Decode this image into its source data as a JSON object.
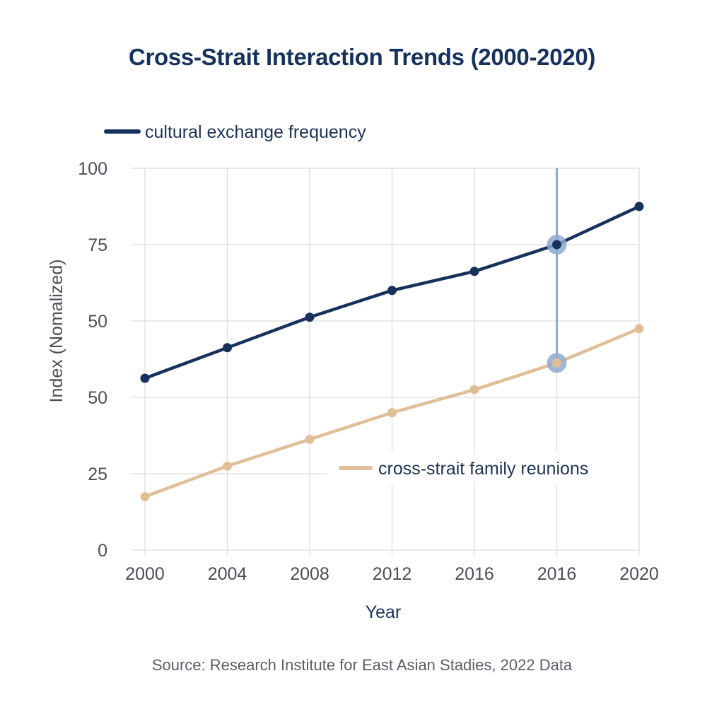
{
  "chart_data": {
    "type": "line",
    "title": "Cross-Strait Interaction Trends (2000-2020)",
    "xlabel": "Year",
    "ylabel": "Index (Nomalized)",
    "x_tick_labels": [
      "2000",
      "2004",
      "2008",
      "2012",
      "2016",
      "2016",
      "2020"
    ],
    "y_tick_labels": [
      "100",
      "75",
      "50",
      "50",
      "25",
      "0"
    ],
    "ylim": [
      0,
      100
    ],
    "grid": true,
    "series": [
      {
        "name": "cultural exchange frequency",
        "color": "#16325c",
        "values": [
          45,
          53,
          61,
          68,
          73,
          80,
          90
        ]
      },
      {
        "name": "cross-strait family reunions",
        "color": "#e0bf98",
        "values": [
          14,
          22,
          29,
          36,
          42,
          49,
          58
        ]
      }
    ],
    "highlight": {
      "index": 5,
      "x_label": "2016",
      "color": "#8ea9d0"
    },
    "legend": [
      {
        "label": "cultural exchange frequency",
        "placement": "top-left"
      },
      {
        "label": "cross-strait family reunions",
        "placement": "center-right"
      }
    ],
    "source": "Source: Research Institute for East Asian Stadies, 2022 Data"
  }
}
